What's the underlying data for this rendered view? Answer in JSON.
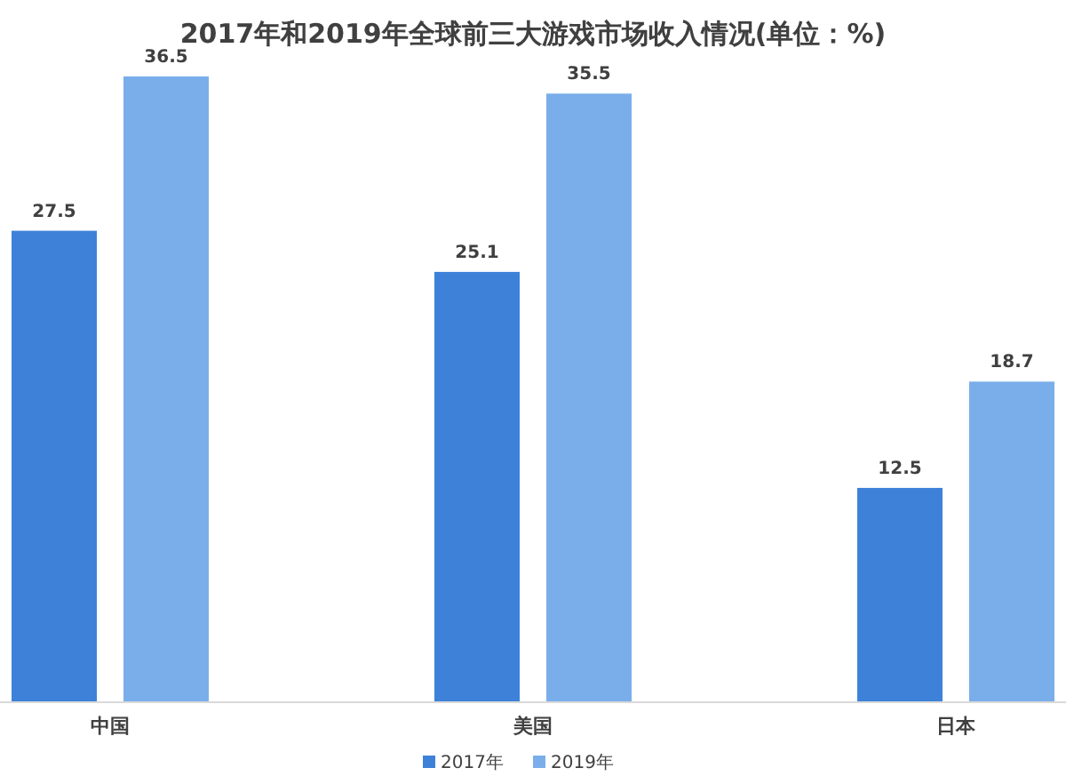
{
  "chart_data": {
    "type": "bar",
    "title": "2017年和2019年全球前三大游戏市场收入情况(单位：%)",
    "categories": [
      "中国",
      "美国",
      "日本"
    ],
    "series": [
      {
        "name": "2017年",
        "color": "#3d82d8",
        "values": [
          27.5,
          25.1,
          12.5
        ]
      },
      {
        "name": "2019年",
        "color": "#7aaeea",
        "values": [
          36.5,
          35.5,
          18.7
        ]
      }
    ],
    "data_labels": true,
    "legend": "bottom"
  }
}
